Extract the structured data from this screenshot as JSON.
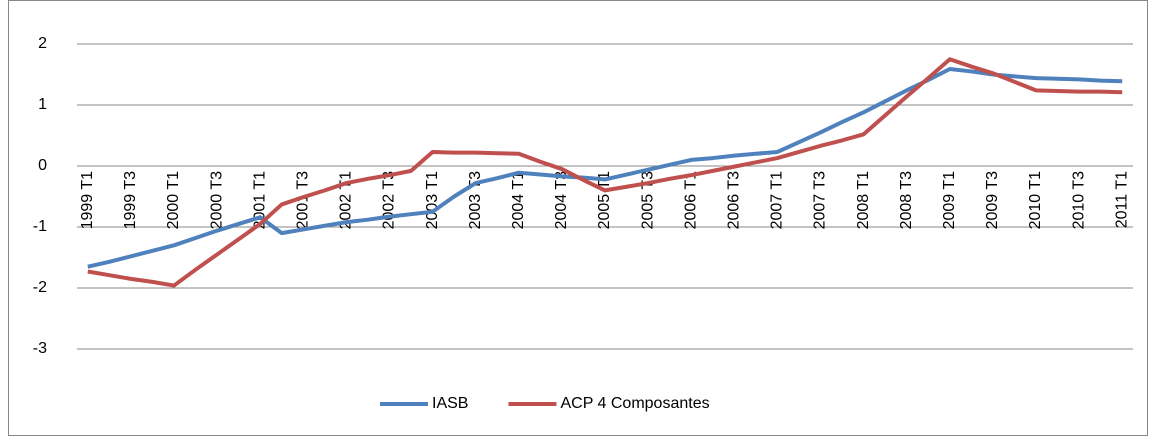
{
  "chart_data": {
    "type": "line",
    "categories": [
      "1999 T1",
      null,
      "1999 T3",
      null,
      "2000 T1",
      null,
      "2000 T3",
      null,
      "2001 T1",
      null,
      "2001 T3",
      null,
      "2002 T1",
      null,
      "2002 T3",
      null,
      "2003 T1",
      null,
      "2003 T3",
      null,
      "2004 T1",
      null,
      "2004 T3",
      null,
      "2005 T1",
      null,
      "2005 T3",
      null,
      "2006 T1",
      null,
      "2006 T3",
      null,
      "2007 T1",
      null,
      "2007 T3",
      null,
      "2008 T1",
      null,
      "2008 T3",
      null,
      "2009 T1",
      null,
      "2009 T3",
      null,
      "2010 T1",
      null,
      "2010 T3",
      null,
      "2011 T1"
    ],
    "series": [
      {
        "name": "IASB",
        "color": "#4f81bd",
        "values": [
          -1.65,
          -1.57,
          -1.48,
          -1.39,
          -1.3,
          -1.18,
          -1.06,
          -0.95,
          -0.84,
          -1.1,
          -1.04,
          -0.98,
          -0.92,
          -0.88,
          -0.83,
          -0.79,
          -0.75,
          -0.5,
          -0.28,
          -0.2,
          -0.11,
          -0.14,
          -0.17,
          -0.19,
          -0.22,
          -0.14,
          -0.06,
          0.02,
          0.1,
          0.13,
          0.17,
          0.2,
          0.23,
          0.39,
          0.55,
          0.72,
          0.88,
          1.06,
          1.24,
          1.41,
          1.59,
          1.55,
          1.5,
          1.47,
          1.44,
          1.43,
          1.42,
          1.4,
          1.39
        ]
      },
      {
        "name": "ACP 4 Composantes",
        "color": "#c0504d",
        "values": [
          -1.73,
          -1.79,
          -1.85,
          -1.9,
          -1.96,
          -1.7,
          -1.45,
          -1.2,
          -0.95,
          -0.63,
          -0.51,
          -0.4,
          -0.28,
          -0.21,
          -0.15,
          -0.08,
          0.23,
          0.22,
          0.22,
          0.21,
          0.2,
          0.07,
          -0.05,
          -0.23,
          -0.4,
          -0.34,
          -0.28,
          -0.21,
          -0.15,
          -0.08,
          -0.01,
          0.06,
          0.13,
          0.23,
          0.33,
          0.42,
          0.52,
          0.83,
          1.14,
          1.44,
          1.75,
          1.63,
          1.52,
          1.38,
          1.24,
          1.23,
          1.22,
          1.22,
          1.21
        ]
      }
    ],
    "ylim": [
      -3,
      2
    ],
    "yticks": [
      -3,
      -2,
      -1,
      0,
      1,
      2
    ],
    "grid": true,
    "legend": "bottom"
  }
}
